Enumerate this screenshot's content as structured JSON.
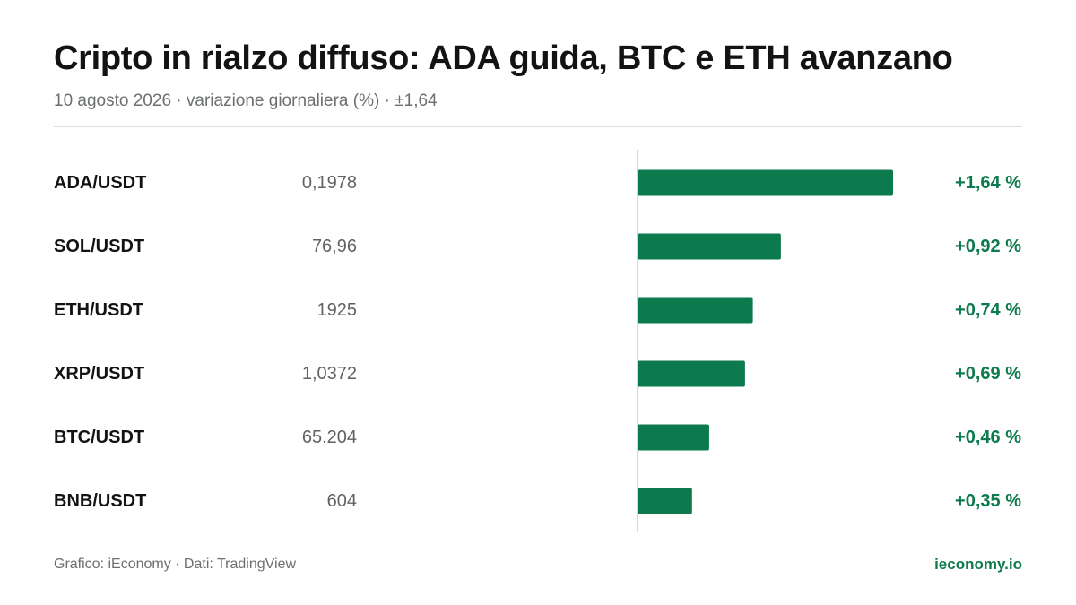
{
  "header": {
    "title": "Cripto in rialzo diffuso: ADA guida, BTC e ETH avanzano",
    "subtitle": "10 agosto 2026 · variazione giornaliera (%) · ±1,64"
  },
  "footer": {
    "source": "Grafico: iEconomy · Dati: TradingView",
    "brand": "ieconomy.io"
  },
  "colors": {
    "bar": "#0d7a4e",
    "axis": "#d6d8d7",
    "positive_text": "#0d7a4e"
  },
  "chart_data": {
    "type": "bar",
    "orientation": "horizontal",
    "categories": [
      "ADA/USDT",
      "SOL/USDT",
      "ETH/USDT",
      "XRP/USDT",
      "BTC/USDT",
      "BNB/USDT"
    ],
    "prices": [
      "0,1978",
      "76,96",
      "1925",
      "1,0372",
      "65.204",
      "604"
    ],
    "values": [
      1.64,
      0.92,
      0.74,
      0.69,
      0.46,
      0.35
    ],
    "value_labels": [
      "+1,64 %",
      "+0,92 %",
      "+0,74 %",
      "+0,69 %",
      "+0,46 %",
      "+0,35 %"
    ],
    "xlim": [
      -1.64,
      1.64
    ],
    "grid": false,
    "legend": "none"
  }
}
